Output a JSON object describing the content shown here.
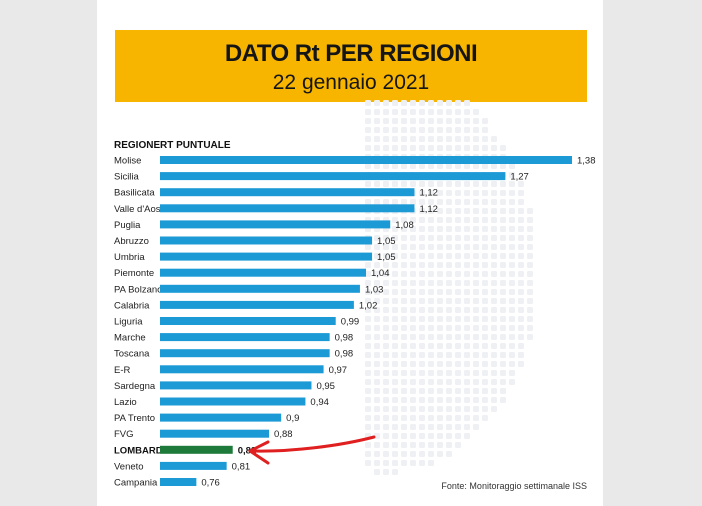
{
  "title": "DATO Rt PER REGIONI",
  "subtitle": "22 gennaio 2021",
  "source": "Fonte: Monitoraggio settimanale ISS",
  "colors": {
    "banner": "#f7b500",
    "bar": "#1c9ad6",
    "highlight_bar": "#1e7a3a",
    "arrow": "#e02020"
  },
  "chart_data": {
    "type": "bar",
    "orientation": "horizontal",
    "column_headers": [
      "REGIONE",
      "RT PUNTUALE"
    ],
    "categories": [
      "Molise",
      "Sicilia",
      "Basilicata",
      "Valle d'Aosta",
      "Puglia",
      "Abruzzo",
      "Umbria",
      "Piemonte",
      "PA Bolzano",
      "Calabria",
      "Liguria",
      "Marche",
      "Toscana",
      "E-R",
      "Sardegna",
      "Lazio",
      "PA Trento",
      "FVG",
      "LOMBARDIA",
      "Veneto",
      "Campania"
    ],
    "values": [
      1.38,
      1.27,
      1.12,
      1.12,
      1.08,
      1.05,
      1.05,
      1.04,
      1.03,
      1.02,
      0.99,
      0.98,
      0.98,
      0.97,
      0.95,
      0.94,
      0.9,
      0.88,
      0.82,
      0.81,
      0.76
    ],
    "value_labels": [
      "1,38",
      "1,27",
      "1,12",
      "1,12",
      "1,08",
      "1,05",
      "1,05",
      "1,04",
      "1,03",
      "1,02",
      "0,99",
      "0,98",
      "0,98",
      "0,97",
      "0,95",
      "0,94",
      "0,9",
      "0,88",
      "0,82",
      "0,81",
      "0,76"
    ],
    "highlighted": "LOMBARDIA",
    "xlim": [
      0.7,
      1.38
    ],
    "grid": false,
    "legend": "none"
  }
}
